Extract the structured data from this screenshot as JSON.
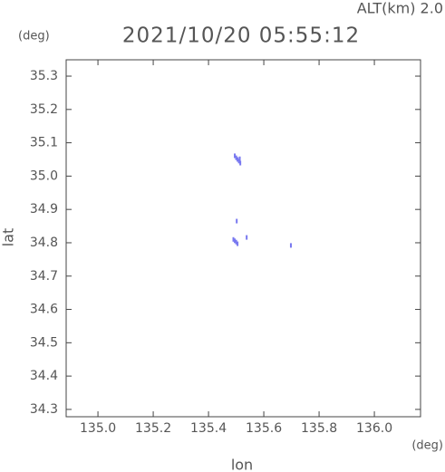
{
  "chart_data": {
    "type": "scatter",
    "title": "2021/10/20 05:55:12",
    "altitude_label": "ALT(km) 2.0",
    "y_unit": "(deg)",
    "x_unit": "(deg)",
    "x_label": "lon",
    "y_label": "lat",
    "xlim": [
      134.885,
      136.167
    ],
    "ylim": [
      34.278,
      35.349
    ],
    "xticks": [
      {
        "value": 135,
        "label": "135.0"
      },
      135.2,
      135.4,
      135.6,
      135.8,
      {
        "value": 136,
        "label": "136.0"
      }
    ],
    "yticks": [
      34.3,
      34.4,
      34.5,
      34.6,
      34.7,
      34.8,
      34.9,
      {
        "value": 35,
        "label": "35.0"
      },
      35.1,
      35.2,
      35.3
    ],
    "series": [
      {
        "color": "#7878f0",
        "x": [
          135.495,
          135.5,
          135.505,
          135.51,
          135.515,
          135.513,
          135.49,
          135.495,
          135.5,
          135.505,
          135.538,
          135.698,
          135.502
        ],
        "y": [
          35.061,
          35.055,
          35.05,
          35.045,
          35.039,
          35.052,
          34.81,
          34.806,
          34.802,
          34.797,
          34.816,
          34.792,
          34.865
        ]
      }
    ]
  }
}
